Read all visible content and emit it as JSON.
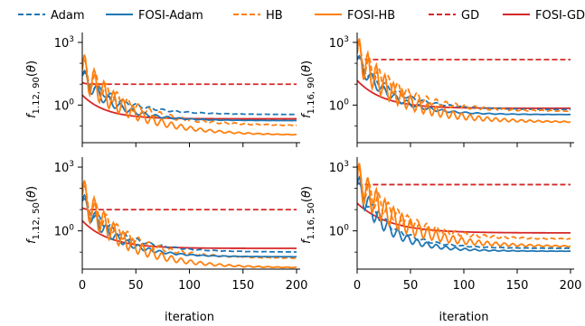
{
  "legend": {
    "entries": [
      {
        "label": "Adam",
        "color": "#1f77b4",
        "dash": true
      },
      {
        "label": "FOSI-Adam",
        "color": "#1f77b4",
        "dash": false
      },
      {
        "label": "HB",
        "color": "#ff7f0e",
        "dash": true
      },
      {
        "label": "FOSI-HB",
        "color": "#ff7f0e",
        "dash": false
      },
      {
        "label": "GD",
        "color": "#d62728",
        "dash": true
      },
      {
        "label": "FOSI-GD",
        "color": "#d62728",
        "dash": false
      }
    ]
  },
  "chart_data": [
    {
      "type": "line",
      "ylabel": "f_{1.12, 90}(θ)",
      "xlabel": "",
      "xlim": [
        0,
        200
      ],
      "ylim_log10": [
        -1.8,
        3.3
      ],
      "yscale": "log",
      "x_ticks": [
        0,
        50,
        100,
        150,
        200
      ],
      "y_ticks": [
        "10^3",
        "10^0"
      ],
      "series": [
        {
          "name": "Adam",
          "start": 25,
          "end": 0.35,
          "decay": 35,
          "osc": 0.3,
          "period": 12,
          "damp": 40
        },
        {
          "name": "FOSI-Adam",
          "start": 25,
          "end": 0.18,
          "decay": 30,
          "osc": 0.45,
          "period": 11,
          "damp": 35
        },
        {
          "name": "HB",
          "start": 50,
          "end": 0.1,
          "decay": 45,
          "osc": 0.6,
          "period": 10,
          "damp": 50
        },
        {
          "name": "FOSI-HB",
          "start": 50,
          "end": 0.035,
          "decay": 45,
          "osc": 0.9,
          "period": 9,
          "damp": 45
        },
        {
          "name": "GD",
          "start": 12,
          "end": 10,
          "decay": 3,
          "osc": 0,
          "period": 10,
          "damp": 10
        },
        {
          "name": "FOSI-GD",
          "start": 3,
          "end": 0.22,
          "decay": 22,
          "osc": 0,
          "period": 10,
          "damp": 10
        }
      ]
    },
    {
      "type": "line",
      "ylabel": "f_{1.16, 90}(θ)",
      "xlabel": "",
      "xlim": [
        0,
        200
      ],
      "ylim_log10": [
        -1.8,
        3.3
      ],
      "yscale": "log",
      "x_ticks": [
        0,
        50,
        100,
        150,
        200
      ],
      "y_ticks": [
        "10^3",
        "10^0"
      ],
      "series": [
        {
          "name": "Adam",
          "start": 150,
          "end": 0.6,
          "decay": 35,
          "osc": 0.3,
          "period": 12,
          "damp": 40
        },
        {
          "name": "FOSI-Adam",
          "start": 150,
          "end": 0.35,
          "decay": 30,
          "osc": 0.4,
          "period": 11,
          "damp": 40
        },
        {
          "name": "HB",
          "start": 300,
          "end": 0.5,
          "decay": 40,
          "osc": 0.6,
          "period": 9,
          "damp": 55
        },
        {
          "name": "FOSI-HB",
          "start": 300,
          "end": 0.15,
          "decay": 40,
          "osc": 0.9,
          "period": 8,
          "damp": 55
        },
        {
          "name": "GD",
          "start": 200,
          "end": 150,
          "decay": 3,
          "osc": 0,
          "period": 10,
          "damp": 10
        },
        {
          "name": "FOSI-GD",
          "start": 15,
          "end": 0.7,
          "decay": 25,
          "osc": 0,
          "period": 10,
          "damp": 10
        }
      ]
    },
    {
      "type": "line",
      "ylabel": "f_{1.12, 50}(θ)",
      "xlabel": "iteration",
      "xlim": [
        0,
        200
      ],
      "ylim_log10": [
        -1.8,
        3.3
      ],
      "yscale": "log",
      "x_ticks": [
        0,
        50,
        100,
        150,
        200
      ],
      "y_ticks": [
        "10^3",
        "10^0"
      ],
      "series": [
        {
          "name": "Adam",
          "start": 25,
          "end": 0.1,
          "decay": 35,
          "osc": 0.3,
          "period": 12,
          "damp": 40
        },
        {
          "name": "FOSI-Adam",
          "start": 25,
          "end": 0.06,
          "decay": 30,
          "osc": 0.5,
          "period": 10,
          "damp": 35
        },
        {
          "name": "HB",
          "start": 50,
          "end": 0.05,
          "decay": 40,
          "osc": 0.6,
          "period": 10,
          "damp": 45
        },
        {
          "name": "FOSI-HB",
          "start": 50,
          "end": 0.018,
          "decay": 40,
          "osc": 0.9,
          "period": 9,
          "damp": 45
        },
        {
          "name": "GD",
          "start": 12,
          "end": 10,
          "decay": 3,
          "osc": 0,
          "period": 10,
          "damp": 10
        },
        {
          "name": "FOSI-GD",
          "start": 3,
          "end": 0.15,
          "decay": 25,
          "osc": 0,
          "period": 10,
          "damp": 10
        }
      ]
    },
    {
      "type": "line",
      "ylabel": "f_{1.16, 50}(θ)",
      "xlabel": "iteration",
      "xlim": [
        0,
        200
      ],
      "ylim_log10": [
        -1.8,
        3.3
      ],
      "yscale": "log",
      "x_ticks": [
        0,
        50,
        100,
        150,
        200
      ],
      "y_ticks": [
        "10^3",
        "10^0"
      ],
      "series": [
        {
          "name": "Adam",
          "start": 150,
          "end": 0.15,
          "decay": 30,
          "osc": 0.3,
          "period": 12,
          "damp": 40
        },
        {
          "name": "FOSI-Adam",
          "start": 150,
          "end": 0.11,
          "decay": 28,
          "osc": 0.6,
          "period": 9,
          "damp": 40
        },
        {
          "name": "HB",
          "start": 300,
          "end": 0.4,
          "decay": 40,
          "osc": 0.6,
          "period": 9,
          "damp": 55
        },
        {
          "name": "FOSI-HB",
          "start": 300,
          "end": 0.18,
          "decay": 40,
          "osc": 0.9,
          "period": 8,
          "damp": 55
        },
        {
          "name": "GD",
          "start": 200,
          "end": 150,
          "decay": 3,
          "osc": 0,
          "period": 10,
          "damp": 10
        },
        {
          "name": "FOSI-GD",
          "start": 20,
          "end": 0.8,
          "decay": 30,
          "osc": 0,
          "period": 10,
          "damp": 10
        }
      ]
    }
  ]
}
